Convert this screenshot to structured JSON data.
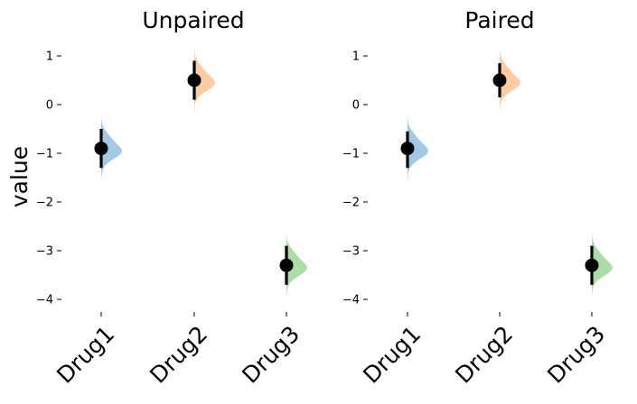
{
  "chart_data": [
    {
      "type": "scatter",
      "title": "Unpaired",
      "xlabel": "",
      "ylabel": "value",
      "categories": [
        "Drug1",
        "Drug2",
        "Drug3"
      ],
      "ylim": [
        -4.3,
        1.3
      ],
      "yticks": [
        1,
        0,
        -1,
        -2,
        -3,
        -4
      ],
      "ytick_labels": [
        "1",
        "0",
        "−1",
        "−2",
        "−3",
        "−4"
      ],
      "grid": false,
      "series": [
        {
          "values": [
            -0.9,
            0.5,
            -3.3
          ],
          "ci_low": [
            -1.3,
            0.1,
            -3.7
          ],
          "ci_high": [
            -0.5,
            0.9,
            -2.9
          ],
          "distribution_colors": [
            "#9ec6e3",
            "#ffc89e",
            "#a6dca2"
          ]
        }
      ]
    },
    {
      "type": "scatter",
      "title": "Paired",
      "xlabel": "",
      "ylabel": "",
      "categories": [
        "Drug1",
        "Drug2",
        "Drug3"
      ],
      "ylim": [
        -4.3,
        1.3
      ],
      "yticks": [
        1,
        0,
        -1,
        -2,
        -3,
        -4
      ],
      "ytick_labels": [
        "1",
        "0",
        "−1",
        "−2",
        "−3",
        "−4"
      ],
      "grid": false,
      "series": [
        {
          "values": [
            -0.9,
            0.5,
            -3.3
          ],
          "ci_low": [
            -1.3,
            0.15,
            -3.7
          ],
          "ci_high": [
            -0.55,
            0.85,
            -2.9
          ],
          "distribution_colors": [
            "#9ec6e3",
            "#ffc89e",
            "#a6dca2"
          ]
        }
      ]
    }
  ]
}
